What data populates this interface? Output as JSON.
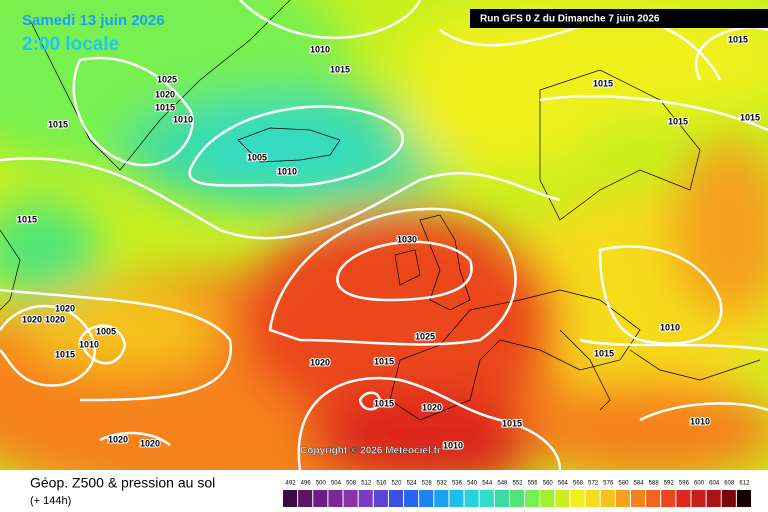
{
  "header": {
    "valid_date": "Samedi 13 juin 2026",
    "local_time": "2:00 locale",
    "run": "Run GFS 0 Z du Dimanche 7 juin 2026",
    "copyright": "Copyright © 2026 Meteociel.fr"
  },
  "footer": {
    "title": "Géop. Z500 & pression au sol",
    "lead": "(+ 144h)"
  },
  "isobar_labels": [
    1010,
    1015,
    1025,
    1020,
    1015,
    1010,
    1015,
    1005,
    1010,
    1015,
    1030,
    1020,
    1020,
    1020,
    1005,
    1010,
    1015,
    1025,
    1020,
    1015,
    1015,
    1020,
    1015,
    1020,
    1020,
    1010,
    1015,
    1015,
    1015,
    1015,
    1010,
    1015,
    1010
  ],
  "legend": {
    "values": [
      492,
      496,
      500,
      504,
      508,
      512,
      516,
      520,
      524,
      528,
      532,
      536,
      540,
      544,
      548,
      552,
      556,
      560,
      564,
      568,
      572,
      576,
      580,
      584,
      588,
      592,
      596,
      600,
      604,
      608,
      612
    ],
    "colors": [
      "#3c0a46",
      "#5a1464",
      "#6e1e82",
      "#7d2896",
      "#8c32aa",
      "#7a3cc8",
      "#5a46d2",
      "#3c50e6",
      "#2864f0",
      "#1e82f0",
      "#1ea0f0",
      "#1ebee6",
      "#28d2dc",
      "#32dcc8",
      "#3cdca0",
      "#50e678",
      "#78f050",
      "#a0f032",
      "#c8f01e",
      "#f0f01e",
      "#f5dc1e",
      "#f5c31e",
      "#f5a01e",
      "#f5821e",
      "#f0641e",
      "#eb461e",
      "#dc281e",
      "#c81e1e",
      "#aa1414",
      "#780a0a",
      "#140000"
    ]
  }
}
